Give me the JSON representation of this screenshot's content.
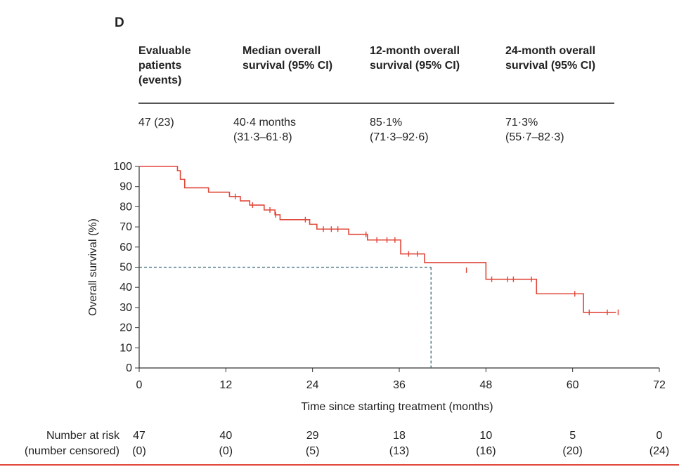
{
  "panel_label": "D",
  "summary_table": {
    "headers": [
      [
        "Evaluable",
        "patients",
        "(events)"
      ],
      [
        "Median overall",
        "survival (95% CI)"
      ],
      [
        "12-month overall",
        "survival (95% CI)"
      ],
      [
        "24-month overall",
        "survival (95% CI)"
      ]
    ],
    "values": [
      [
        "47 (23)"
      ],
      [
        "40·4 months",
        "(31·3–61·8)"
      ],
      [
        "85·1%",
        "(71·3–92·6)"
      ],
      [
        "71·3%",
        "(55·7–82·3)"
      ]
    ]
  },
  "chart_data": {
    "type": "line",
    "title": "",
    "xlabel": "Time since starting treatment (months)",
    "ylabel": "Overall survival (%)",
    "xlim": [
      0,
      72
    ],
    "ylim": [
      0,
      100
    ],
    "xticks": [
      0,
      12,
      24,
      36,
      48,
      60,
      72
    ],
    "yticks": [
      0,
      10,
      20,
      30,
      40,
      50,
      60,
      70,
      80,
      90,
      100
    ],
    "series": [
      {
        "color": "#e0473a",
        "step": true,
        "x": [
          0,
          5.3,
          5.7,
          6.3,
          9.6,
          12.5,
          14.0,
          15.3,
          17.3,
          18.8,
          19.5,
          23.6,
          24.6,
          29.0,
          31.6,
          36.2,
          37.8,
          39.5,
          48.0,
          55.0,
          61.5,
          66.0
        ],
        "y": [
          100,
          97.9,
          93.6,
          89.4,
          87.2,
          85.1,
          82.9,
          80.8,
          78.4,
          76.0,
          73.6,
          71.3,
          68.9,
          66.3,
          63.5,
          56.6,
          56.6,
          52.3,
          44.0,
          36.8,
          27.6,
          27.6
        ]
      }
    ],
    "censor_marks": [
      {
        "x": 13.3,
        "y": 85.1
      },
      {
        "x": 15.7,
        "y": 80.8
      },
      {
        "x": 18.1,
        "y": 78.4
      },
      {
        "x": 18.9,
        "y": 76.0
      },
      {
        "x": 23.0,
        "y": 73.6
      },
      {
        "x": 25.5,
        "y": 68.9
      },
      {
        "x": 26.6,
        "y": 68.9
      },
      {
        "x": 27.5,
        "y": 68.9
      },
      {
        "x": 31.4,
        "y": 66.3
      },
      {
        "x": 32.9,
        "y": 63.5
      },
      {
        "x": 34.3,
        "y": 63.5
      },
      {
        "x": 35.4,
        "y": 63.5
      },
      {
        "x": 37.3,
        "y": 56.6
      },
      {
        "x": 38.5,
        "y": 56.6
      },
      {
        "x": 45.3,
        "y": 48.5
      },
      {
        "x": 48.8,
        "y": 44.0
      },
      {
        "x": 51.0,
        "y": 44.0
      },
      {
        "x": 51.8,
        "y": 44.0
      },
      {
        "x": 54.3,
        "y": 44.0
      },
      {
        "x": 60.3,
        "y": 36.8
      },
      {
        "x": 62.3,
        "y": 27.6
      },
      {
        "x": 64.8,
        "y": 27.6
      },
      {
        "x": 66.3,
        "y": 27.6
      }
    ],
    "median_reference": {
      "x": 40.4,
      "y": 50,
      "color": "#3a6a78"
    }
  },
  "risk_table": {
    "label_line1": "Number at risk",
    "label_line2": "(number censored)",
    "at_risk": [
      "47",
      "40",
      "29",
      "18",
      "10",
      "5",
      "0"
    ],
    "censored": [
      "(0)",
      "(0)",
      "(5)",
      "(13)",
      "(16)",
      "(20)",
      "(24)"
    ]
  },
  "colors": {
    "km_line": "#e0473a",
    "axis": "#333333",
    "reference": "#3a6a78",
    "footer_rule": "#e0473a"
  }
}
